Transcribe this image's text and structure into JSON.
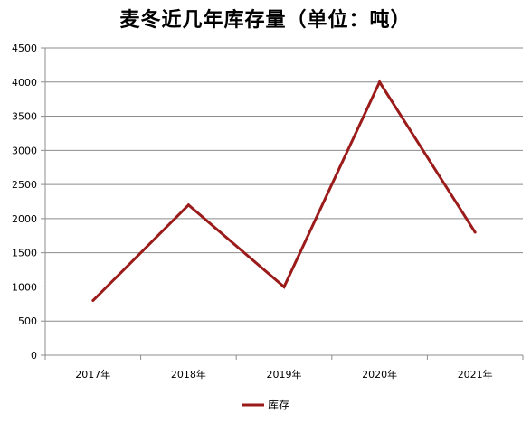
{
  "chart_data": {
    "type": "line",
    "title": "麦冬近几年库存量（单位：吨）",
    "categories": [
      "2017年",
      "2018年",
      "2019年",
      "2020年",
      "2021年"
    ],
    "series": [
      {
        "name": "库存",
        "values": [
          800,
          2200,
          1000,
          4000,
          1800
        ],
        "color": "#9b1b1b"
      }
    ],
    "ylim": [
      0,
      4500
    ],
    "yticks": [
      0,
      500,
      1000,
      1500,
      2000,
      2500,
      3000,
      3500,
      4000,
      4500
    ],
    "grid": true,
    "legend_position": "bottom",
    "xlabel": "",
    "ylabel": ""
  }
}
